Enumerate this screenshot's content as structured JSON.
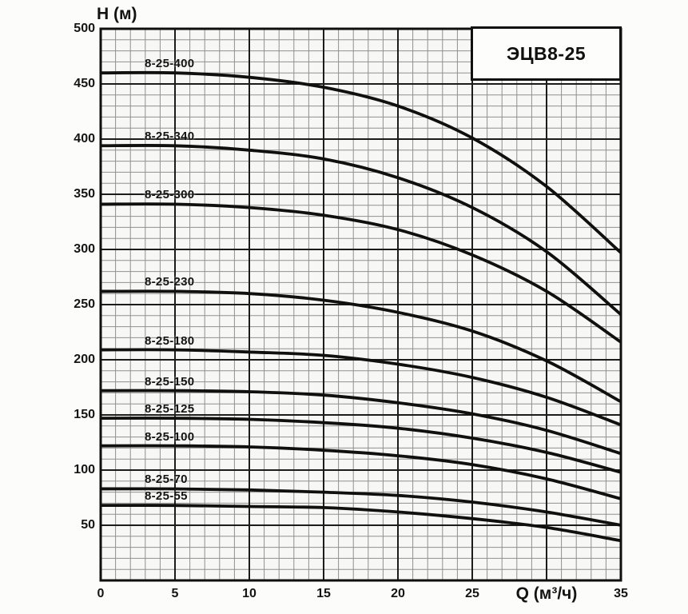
{
  "chart_data": {
    "type": "line",
    "title": "ЭЦВ8-25",
    "xlabel": "Q (м³/ч)",
    "ylabel": "H (м)",
    "xlim": [
      0,
      35
    ],
    "ylim": [
      0,
      500
    ],
    "x_major_step": 5,
    "x_minor_step": 1,
    "y_major_step": 50,
    "y_minor_step": 10,
    "grid": "on",
    "y_ticks": [
      {
        "value": 500,
        "label": "500"
      },
      {
        "value": 450,
        "label": "450"
      },
      {
        "value": 400,
        "label": "400"
      },
      {
        "value": 350,
        "label": "350"
      },
      {
        "value": 300,
        "label": "300"
      },
      {
        "value": 250,
        "label": "250"
      },
      {
        "value": 200,
        "label": "200"
      },
      {
        "value": 150,
        "label": "150"
      },
      {
        "value": 100,
        "label": "100"
      },
      {
        "value": 50,
        "label": "50"
      }
    ],
    "x_ticks": [
      {
        "value": 0,
        "label": "0"
      },
      {
        "value": 5,
        "label": "5"
      },
      {
        "value": 10,
        "label": "10"
      },
      {
        "value": 15,
        "label": "15"
      },
      {
        "value": 20,
        "label": "20"
      },
      {
        "value": 25,
        "label": "25"
      },
      {
        "value": 30,
        "label": "Q (м³/ч)",
        "is_axis_label": true
      },
      {
        "value": 35,
        "label": "35"
      }
    ],
    "x": [
      0,
      5,
      10,
      15,
      20,
      25,
      30,
      35
    ],
    "series": [
      {
        "name": "8-25-400",
        "values": [
          460,
          460,
          456,
          447,
          430,
          401,
          357,
          297
        ]
      },
      {
        "name": "8-25-340",
        "values": [
          394,
          394,
          390,
          382,
          365,
          338,
          298,
          241
        ]
      },
      {
        "name": "8-25-300",
        "values": [
          341,
          341,
          338,
          331,
          318,
          295,
          262,
          216
        ]
      },
      {
        "name": "8-25-230",
        "values": [
          262,
          262,
          260,
          254,
          243,
          226,
          199,
          162
        ]
      },
      {
        "name": "8-25-180",
        "values": [
          209,
          209,
          207,
          204,
          196,
          184,
          166,
          141
        ]
      },
      {
        "name": "8-25-150",
        "values": [
          172,
          172,
          171,
          168,
          161,
          151,
          136,
          115
        ]
      },
      {
        "name": "8-25-125",
        "values": [
          147,
          147,
          146,
          143,
          138,
          129,
          116,
          98
        ]
      },
      {
        "name": "8-25-100",
        "values": [
          122,
          122,
          121,
          118,
          113,
          105,
          92,
          74
        ]
      },
      {
        "name": "8-25-70",
        "values": [
          83,
          83,
          82,
          80,
          77,
          71,
          62,
          50
        ]
      },
      {
        "name": "8-25-55",
        "values": [
          68,
          68,
          67,
          66,
          62,
          56,
          48,
          36
        ]
      }
    ],
    "legend_position": "labels-on-curves",
    "colors": {
      "curve": "#101010",
      "major_grid": "#1c1c1c",
      "minor_grid": "#909090",
      "border": "#0f0f0f",
      "plot_background": "#f7f7f5",
      "page_background": "#fcfcfb"
    }
  }
}
